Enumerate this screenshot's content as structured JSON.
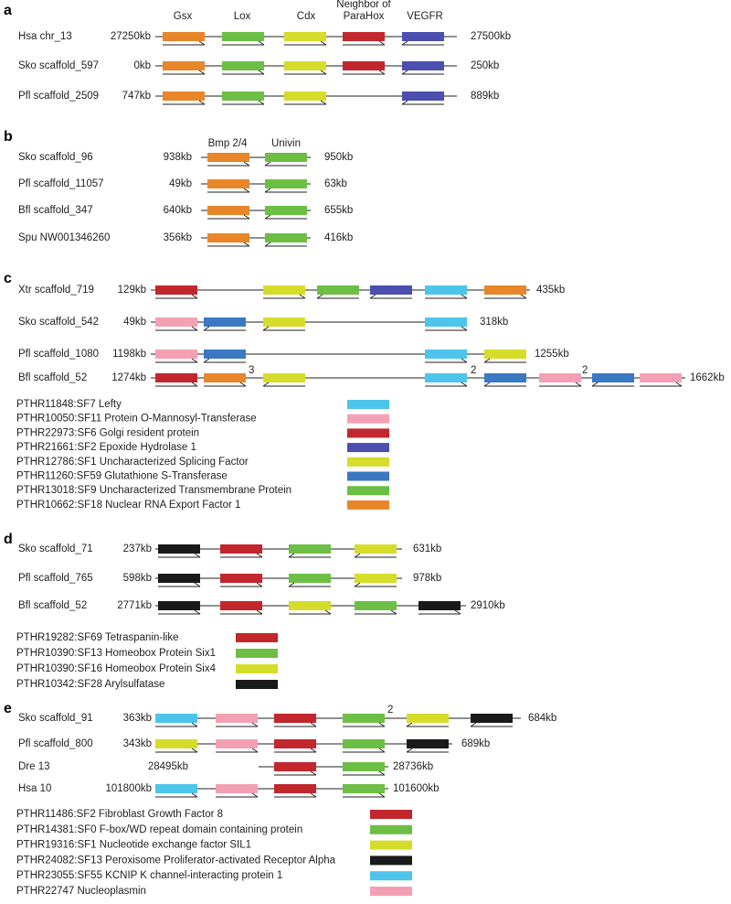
{
  "panels": [
    {
      "letter": "a",
      "headers": [
        [
          "Gsx"
        ],
        [
          "Lox"
        ],
        [
          "Cdx"
        ],
        [
          "Neighbor of",
          "ParaHox"
        ],
        [
          "VEGFR"
        ]
      ],
      "rows": [
        {
          "name": "Hsa chr_13",
          "start": "27250kb",
          "end": "27500kb",
          "notes": []
        },
        {
          "name": "Sko scaffold_597",
          "start": "0kb",
          "end": "250kb",
          "notes": []
        },
        {
          "name": "Pfl scaffold_2509",
          "start": "747kb",
          "end": "889kb",
          "notes": []
        }
      ]
    },
    {
      "letter": "b",
      "headers": [
        [
          "Bmp 2/4"
        ],
        [
          "Univin"
        ]
      ],
      "rows": [
        {
          "name": "Sko scaffold_96",
          "start": "938kb",
          "end": "950kb",
          "notes": []
        },
        {
          "name": "Pfl scaffold_11057",
          "start": "49kb",
          "end": "63kb",
          "notes": []
        },
        {
          "name": "Bfl scaffold_347",
          "start": "640kb",
          "end": "655kb",
          "notes": []
        },
        {
          "name": "Spu NW001346260",
          "start": "356kb",
          "end": "416kb",
          "notes": []
        }
      ]
    },
    {
      "letter": "c",
      "headers": [],
      "rows": [
        {
          "name": "Xtr scaffold_719",
          "start": "129kb",
          "end": "435kb",
          "notes": []
        },
        {
          "name": "Sko scaffold_542",
          "start": "49kb",
          "end": "318kb",
          "notes": []
        },
        {
          "name": "Pfl scaffold_1080",
          "start": "1198kb",
          "end": "1255kb",
          "notes": []
        },
        {
          "name": "Bfl scaffold_52",
          "start": "1274kb",
          "end": "1662kb",
          "notes": [
            "3",
            "2",
            "2"
          ]
        }
      ],
      "legend": [
        "PTHR11848:SF7 Lefty",
        "PTHR10050:SF11 Protein O-Mannosyl-Transferase",
        "PTHR22973:SF6 Golgi resident protein",
        "PTHR21661:SF2 Epoxide Hydrolase 1",
        "PTHR12786:SF1 Uncharacterized Splicing Factor",
        "PTHR11260:SF59 Glutathione S-Transferase",
        "PTHR13018:SF9 Uncharacterized Transmembrane Protein",
        "PTHR10662:SF18 Nuclear RNA Export Factor 1"
      ]
    },
    {
      "letter": "d",
      "headers": [],
      "rows": [
        {
          "name": "Sko scaffold_71",
          "start": "237kb",
          "end": "631kb",
          "notes": []
        },
        {
          "name": "Pfl  scaffold_765",
          "start": "598kb",
          "end": "978kb",
          "notes": []
        },
        {
          "name": "Bfl scaffold_52",
          "start": "2771kb",
          "end": "2910kb",
          "notes": []
        }
      ],
      "legend": [
        "PTHR19282:SF69 Tetraspanin-like",
        "PTHR10390:SF13 Homeobox Protein Six1",
        "PTHR10390:SF16 Homeobox Protein Six4",
        "PTHR10342:SF28 Arylsulfatase"
      ]
    },
    {
      "letter": "e",
      "headers": [],
      "rows": [
        {
          "name": "Sko scaffold_91",
          "start": "363kb",
          "end": "684kb",
          "notes": [
            "2"
          ]
        },
        {
          "name": "Pfl  scaffold_800",
          "start": "343kb",
          "end": "689kb",
          "notes": []
        },
        {
          "name": "Dre 13",
          "start": "28495kb",
          "end": "28736kb",
          "notes": []
        },
        {
          "name": "Hsa 10",
          "start": "101800kb",
          "end": "101600kb",
          "notes": []
        }
      ],
      "legend": [
        "PTHR11486:SF2 Fibroblast Growth Factor 8",
        "PTHR14381:SF0 F-box/WD repeat domain containing protein",
        "PTHR19316:SF1 Nucleotide exchange factor SIL1",
        "PTHR24082:SF13 Peroxisome Proliferator-activated Receptor Alpha",
        "PTHR23055:SF55 KCNIP K channel-interacting protein 1",
        "PTHR22747 Nucleoplasmin"
      ]
    }
  ]
}
